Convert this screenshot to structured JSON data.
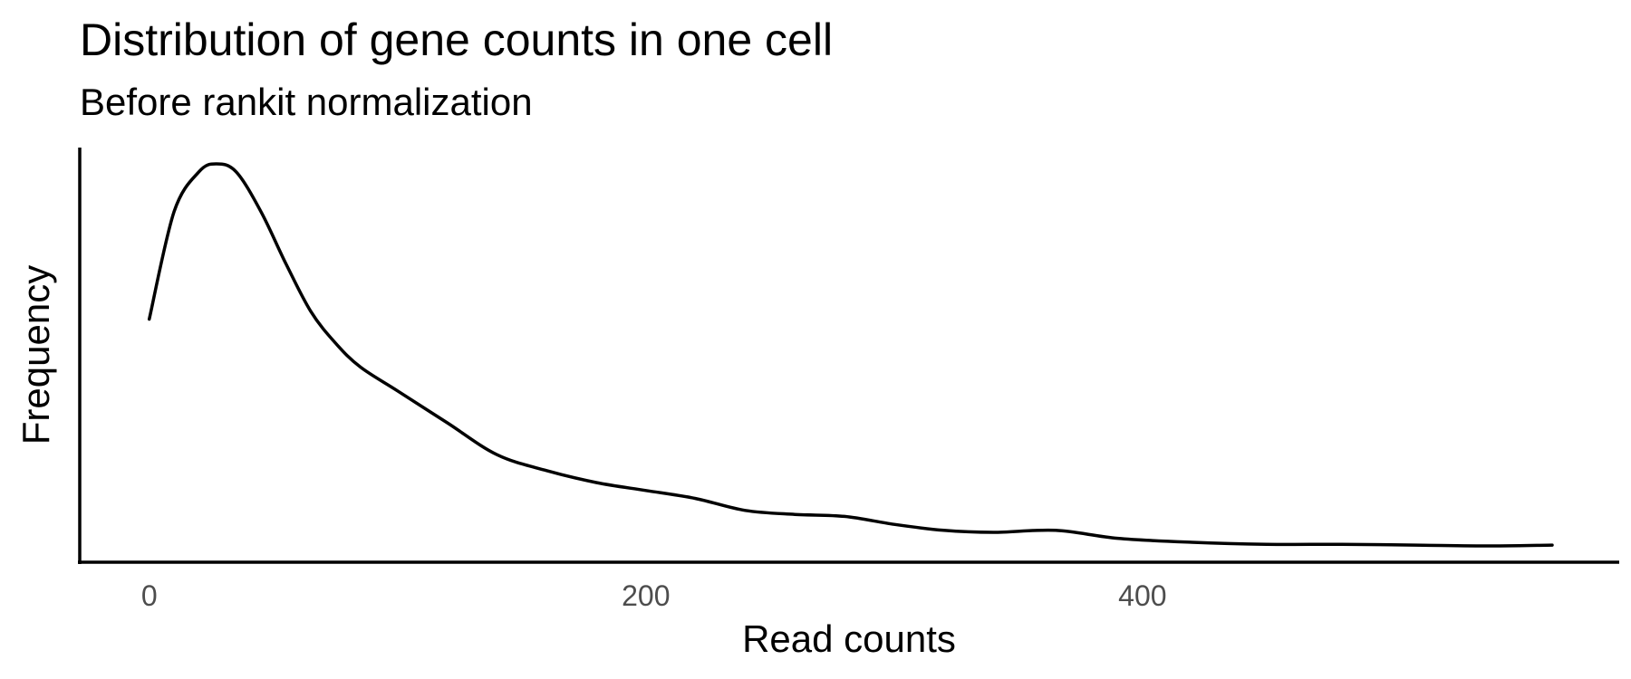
{
  "chart_data": {
    "type": "line",
    "title": "Distribution of gene counts in one cell",
    "subtitle": "Before rankit normalization",
    "xlabel": "Read counts",
    "ylabel": "Frequency",
    "xlim": [
      -28,
      592
    ],
    "ylim": [
      0,
      1.0
    ],
    "x_ticks": [
      0,
      200,
      400
    ],
    "x_tick_labels": [
      "0",
      "200",
      "400"
    ],
    "y_ticks_shown": false,
    "grid": false,
    "legend": "none",
    "line_color": "#000000",
    "x": [
      0,
      10,
      20,
      27,
      35,
      45,
      55,
      65,
      75,
      85,
      100,
      120,
      140,
      160,
      180,
      200,
      220,
      240,
      260,
      280,
      300,
      320,
      340,
      365,
      390,
      420,
      450,
      480,
      510,
      540,
      565
    ],
    "y": [
      0.61,
      0.88,
      0.98,
      1.0,
      0.98,
      0.88,
      0.75,
      0.63,
      0.55,
      0.49,
      0.43,
      0.35,
      0.27,
      0.23,
      0.2,
      0.18,
      0.16,
      0.13,
      0.12,
      0.115,
      0.095,
      0.08,
      0.075,
      0.08,
      0.06,
      0.05,
      0.045,
      0.045,
      0.043,
      0.041,
      0.043
    ]
  }
}
